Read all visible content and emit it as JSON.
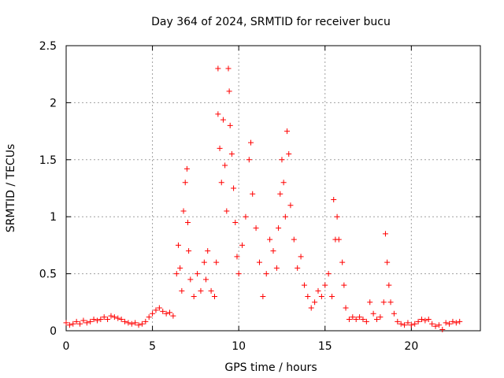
{
  "chart_data": {
    "type": "scatter",
    "title": "Day 364 of 2024, SRMTID for receiver bucu",
    "xlabel": "GPS time / hours",
    "ylabel": "SRMTID / TECUs",
    "xlim": [
      0,
      24
    ],
    "ylim": [
      0,
      2.5
    ],
    "xticks": [
      0,
      5,
      10,
      15,
      20
    ],
    "xtick_labels": [
      "0",
      "5",
      "10",
      "15",
      "20"
    ],
    "yticks": [
      0,
      0.5,
      1,
      1.5,
      2,
      2.5
    ],
    "ytick_labels": [
      "0",
      "0.5",
      "1",
      "1.5",
      "2",
      "2.5"
    ],
    "grid": true,
    "marker": "plus",
    "series": [
      {
        "name": "SRMTID",
        "color": "#ff0000",
        "points": [
          [
            0.0,
            0.07
          ],
          [
            0.2,
            0.05
          ],
          [
            0.4,
            0.06
          ],
          [
            0.6,
            0.08
          ],
          [
            0.8,
            0.06
          ],
          [
            1.0,
            0.09
          ],
          [
            1.2,
            0.07
          ],
          [
            1.4,
            0.08
          ],
          [
            1.6,
            0.1
          ],
          [
            1.8,
            0.09
          ],
          [
            2.0,
            0.1
          ],
          [
            2.2,
            0.12
          ],
          [
            2.4,
            0.1
          ],
          [
            2.6,
            0.13
          ],
          [
            2.8,
            0.12
          ],
          [
            3.0,
            0.11
          ],
          [
            3.2,
            0.1
          ],
          [
            3.4,
            0.08
          ],
          [
            3.6,
            0.07
          ],
          [
            3.8,
            0.06
          ],
          [
            4.0,
            0.07
          ],
          [
            4.2,
            0.05
          ],
          [
            4.4,
            0.06
          ],
          [
            4.6,
            0.08
          ],
          [
            4.8,
            0.12
          ],
          [
            5.0,
            0.15
          ],
          [
            5.2,
            0.18
          ],
          [
            5.4,
            0.2
          ],
          [
            5.6,
            0.17
          ],
          [
            5.8,
            0.15
          ],
          [
            6.0,
            0.16
          ],
          [
            6.2,
            0.13
          ],
          [
            6.4,
            0.5
          ],
          [
            6.5,
            0.75
          ],
          [
            6.6,
            0.55
          ],
          [
            6.7,
            0.35
          ],
          [
            6.8,
            1.05
          ],
          [
            6.9,
            1.3
          ],
          [
            7.0,
            1.42
          ],
          [
            7.05,
            0.95
          ],
          [
            7.1,
            0.7
          ],
          [
            7.2,
            0.45
          ],
          [
            7.4,
            0.3
          ],
          [
            7.6,
            0.5
          ],
          [
            7.8,
            0.35
          ],
          [
            8.0,
            0.6
          ],
          [
            8.1,
            0.45
          ],
          [
            8.2,
            0.7
          ],
          [
            8.4,
            0.35
          ],
          [
            8.6,
            0.3
          ],
          [
            8.7,
            0.6
          ],
          [
            8.8,
            1.9
          ],
          [
            8.8,
            2.3
          ],
          [
            8.9,
            1.6
          ],
          [
            9.0,
            1.3
          ],
          [
            9.1,
            1.85
          ],
          [
            9.2,
            1.45
          ],
          [
            9.3,
            1.05
          ],
          [
            9.4,
            2.3
          ],
          [
            9.45,
            2.1
          ],
          [
            9.5,
            1.8
          ],
          [
            9.6,
            1.55
          ],
          [
            9.7,
            1.25
          ],
          [
            9.8,
            0.95
          ],
          [
            9.9,
            0.65
          ],
          [
            10.0,
            0.5
          ],
          [
            10.2,
            0.75
          ],
          [
            10.4,
            1.0
          ],
          [
            10.6,
            1.5
          ],
          [
            10.7,
            1.65
          ],
          [
            10.8,
            1.2
          ],
          [
            11.0,
            0.9
          ],
          [
            11.2,
            0.6
          ],
          [
            11.4,
            0.3
          ],
          [
            11.6,
            0.5
          ],
          [
            11.8,
            0.8
          ],
          [
            12.0,
            0.7
          ],
          [
            12.2,
            0.55
          ],
          [
            12.3,
            0.9
          ],
          [
            12.4,
            1.2
          ],
          [
            12.5,
            1.5
          ],
          [
            12.6,
            1.3
          ],
          [
            12.7,
            1.0
          ],
          [
            12.8,
            1.75
          ],
          [
            12.9,
            1.55
          ],
          [
            13.0,
            1.1
          ],
          [
            13.2,
            0.8
          ],
          [
            13.4,
            0.55
          ],
          [
            13.6,
            0.65
          ],
          [
            13.8,
            0.4
          ],
          [
            14.0,
            0.3
          ],
          [
            14.2,
            0.2
          ],
          [
            14.4,
            0.25
          ],
          [
            14.6,
            0.35
          ],
          [
            14.8,
            0.3
          ],
          [
            15.0,
            0.4
          ],
          [
            15.2,
            0.5
          ],
          [
            15.4,
            0.3
          ],
          [
            15.5,
            1.15
          ],
          [
            15.6,
            0.8
          ],
          [
            15.7,
            1.0
          ],
          [
            15.8,
            0.8
          ],
          [
            16.0,
            0.6
          ],
          [
            16.1,
            0.4
          ],
          [
            16.2,
            0.2
          ],
          [
            16.4,
            0.1
          ],
          [
            16.6,
            0.12
          ],
          [
            16.8,
            0.1
          ],
          [
            17.0,
            0.12
          ],
          [
            17.2,
            0.1
          ],
          [
            17.4,
            0.08
          ],
          [
            17.6,
            0.25
          ],
          [
            17.8,
            0.15
          ],
          [
            18.0,
            0.1
          ],
          [
            18.2,
            0.12
          ],
          [
            18.4,
            0.25
          ],
          [
            18.5,
            0.85
          ],
          [
            18.6,
            0.6
          ],
          [
            18.7,
            0.4
          ],
          [
            18.8,
            0.25
          ],
          [
            19.0,
            0.15
          ],
          [
            19.2,
            0.08
          ],
          [
            19.4,
            0.06
          ],
          [
            19.6,
            0.05
          ],
          [
            19.8,
            0.07
          ],
          [
            20.0,
            0.05
          ],
          [
            20.2,
            0.06
          ],
          [
            20.4,
            0.08
          ],
          [
            20.6,
            0.1
          ],
          [
            20.8,
            0.09
          ],
          [
            21.0,
            0.1
          ],
          [
            21.2,
            0.06
          ],
          [
            21.4,
            0.04
          ],
          [
            21.6,
            0.05
          ],
          [
            21.8,
            0.01
          ],
          [
            22.0,
            0.07
          ],
          [
            22.2,
            0.06
          ],
          [
            22.4,
            0.08
          ],
          [
            22.6,
            0.07
          ],
          [
            22.8,
            0.08
          ]
        ]
      }
    ]
  }
}
